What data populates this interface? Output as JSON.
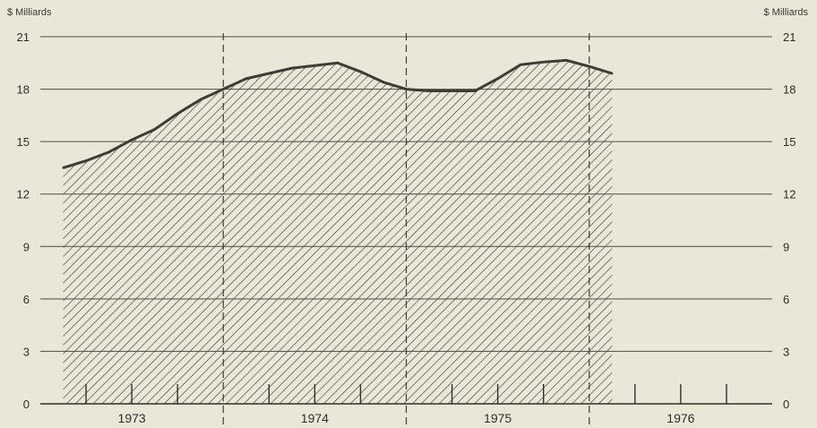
{
  "chart_data": {
    "type": "area",
    "unit_left": "$ Milliards",
    "unit_right": "$ Milliards",
    "title": "",
    "xlabel": "",
    "ylabel": "",
    "ylim": [
      0,
      21
    ],
    "yticks": [
      "0",
      "3",
      "6",
      "9",
      "12",
      "15",
      "18",
      "21"
    ],
    "years": [
      "1973",
      "1974",
      "1975",
      "1976"
    ],
    "x_range": [
      1973.0,
      1977.0
    ],
    "grid": true,
    "series": [
      {
        "x": [
          1973.125,
          1973.25,
          1973.375,
          1973.5,
          1973.625,
          1973.75,
          1973.875,
          1974.0,
          1974.125,
          1974.25,
          1974.375,
          1974.5,
          1974.625,
          1974.75,
          1974.875,
          1975.0,
          1975.125,
          1975.25,
          1975.375,
          1975.5,
          1975.625,
          1975.75,
          1975.875,
          1976.0,
          1976.125
        ],
        "values": [
          13.5,
          13.9,
          14.4,
          15.1,
          15.7,
          16.6,
          17.4,
          18.0,
          18.6,
          18.9,
          19.2,
          19.35,
          19.5,
          19.0,
          18.4,
          18.0,
          17.9,
          17.9,
          17.9,
          18.6,
          19.4,
          19.55,
          19.65,
          19.3,
          18.9
        ]
      }
    ]
  }
}
